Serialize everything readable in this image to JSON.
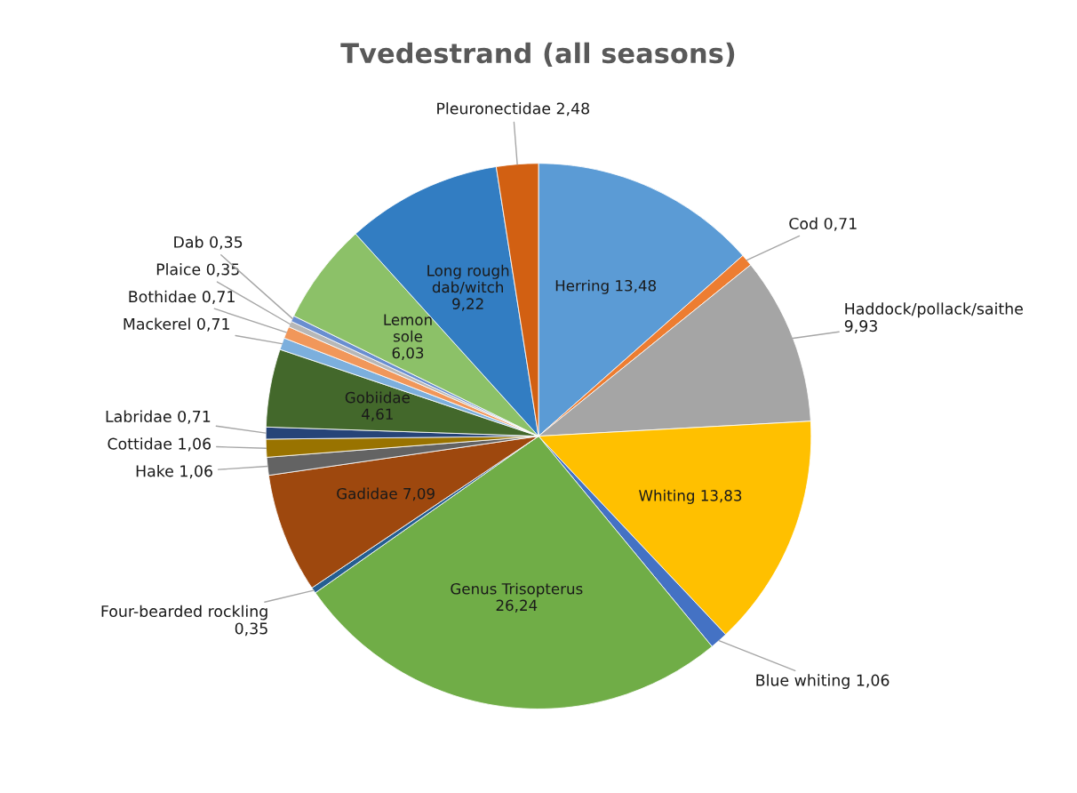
{
  "chart_data": {
    "type": "pie",
    "title": "Tvedestrand (all seasons)",
    "categories": [
      "Herring",
      "Cod",
      "Haddock/pollack/saithe",
      "Whiting",
      "Blue whiting",
      "Genus Trisopterus",
      "Four-bearded rockling",
      "Gadidae",
      "Hake",
      "Cottidae",
      "Labridae",
      "Gobiidae",
      "Mackerel",
      "Bothidae",
      "Plaice",
      "Dab",
      "Lemon sole",
      "Long rough dab/witch",
      "Pleuronectidae"
    ],
    "values": [
      13.48,
      0.71,
      9.93,
      13.83,
      1.06,
      26.24,
      0.35,
      7.09,
      1.06,
      1.06,
      0.71,
      4.61,
      0.71,
      0.71,
      0.35,
      0.35,
      6.03,
      9.22,
      2.48
    ],
    "value_labels": [
      "13,48",
      "0,71",
      "9,93",
      "13,83",
      "1,06",
      "26,24",
      "0,35",
      "7,09",
      "1,06",
      "1,06",
      "0,71",
      "4,61",
      "0,71",
      "0,71",
      "0,35",
      "0,35",
      "6,03",
      "9,22",
      "2,48"
    ],
    "colors": [
      "#5b9bd5",
      "#ed7d31",
      "#a5a5a5",
      "#ffc000",
      "#4472c4",
      "#70ad47",
      "#255e91",
      "#9e480e",
      "#636363",
      "#997300",
      "#264478",
      "#43682b",
      "#7cafdd",
      "#f1975a",
      "#b7b7b7",
      "#698ed0",
      "#8cc168",
      "#327dc2",
      "#d26012"
    ]
  }
}
